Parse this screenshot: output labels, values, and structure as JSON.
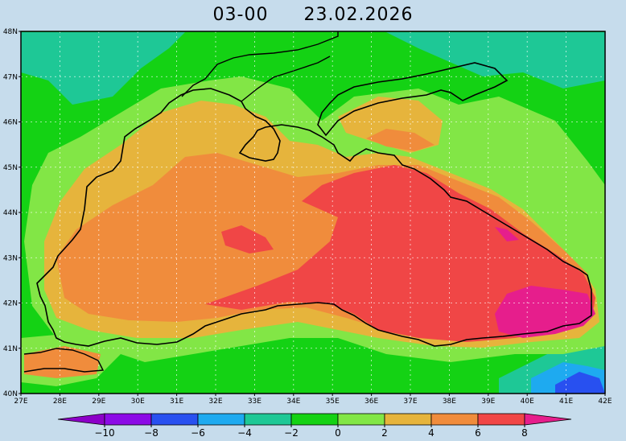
{
  "header": {
    "time": "03-00",
    "date": "23.02.2026"
  },
  "lat_labels": [
    "48N",
    "47N",
    "46N",
    "45N",
    "44N",
    "43N",
    "42N",
    "41N",
    "40N"
  ],
  "lon_labels": [
    "27E",
    "28E",
    "29E",
    "30E",
    "31E",
    "32E",
    "33E",
    "34E",
    "35E",
    "36E",
    "37E",
    "38E",
    "39E",
    "40E",
    "41E",
    "42E"
  ],
  "colorbar": {
    "ticks": [
      "−10",
      "−8",
      "−6",
      "−4",
      "−2",
      "0",
      "2",
      "4",
      "6",
      "8"
    ],
    "colors": [
      "#8c00c8",
      "#8c0ae6",
      "#2850f0",
      "#1eaaf0",
      "#1ec896",
      "#14d214",
      "#82e646",
      "#e6b43c",
      "#f08c3c",
      "#f04646",
      "#e61e8c"
    ]
  },
  "field_colors": {
    "c_minus6": "#2850f0",
    "c_minus4": "#1eaaf0",
    "c_minus2": "#1ec896",
    "c_0": "#14d214",
    "c_2": "#82e646",
    "c_4": "#e6b43c",
    "c_6": "#f08c3c",
    "c_8": "#f04646",
    "c_10": "#e61e8c"
  }
}
